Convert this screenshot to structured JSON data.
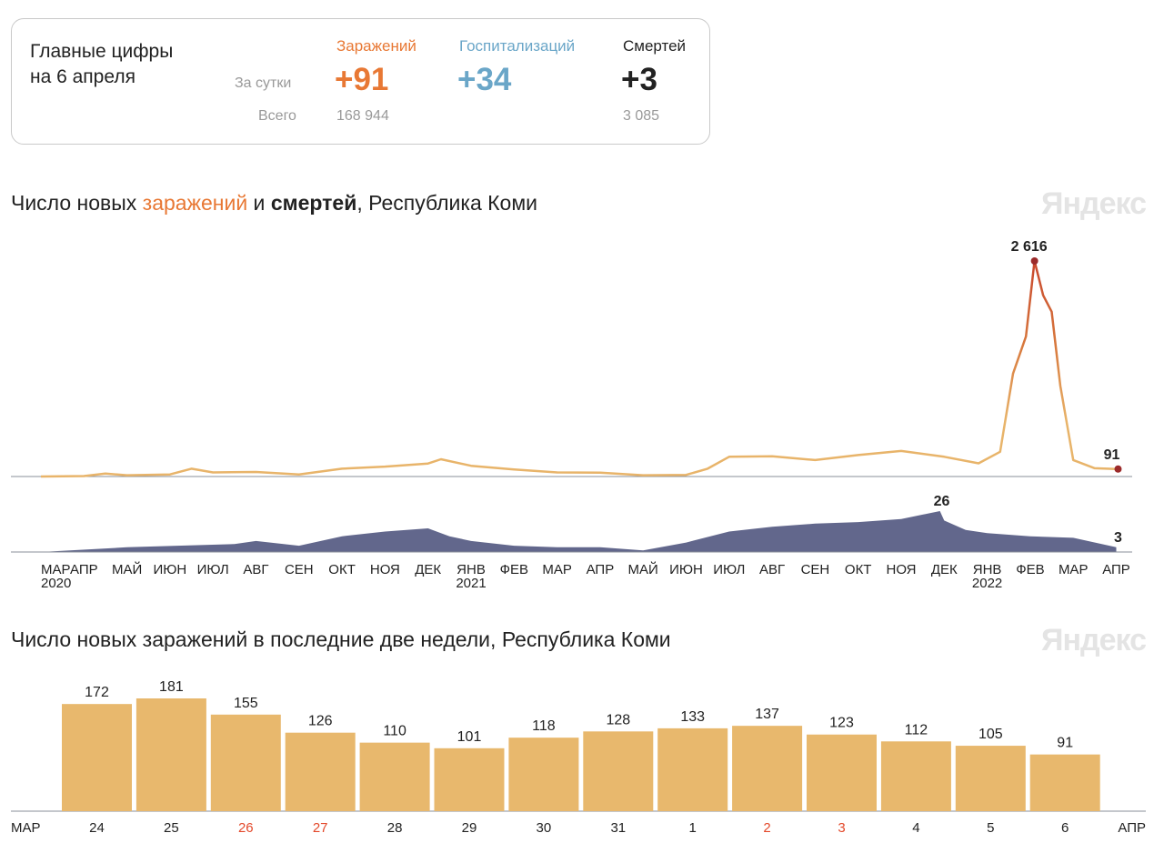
{
  "card": {
    "title_line1": "Главные цифры",
    "title_line2": "на 6 апреля",
    "row_daily": "За сутки",
    "row_total": "Всего",
    "columns": [
      {
        "label": "Заражений",
        "daily": "+91",
        "total": "168 944",
        "color": "#e87834"
      },
      {
        "label": "Госпитализаций",
        "daily": "+34",
        "total": "",
        "color": "#6aa6c8"
      },
      {
        "label": "Смертей",
        "daily": "+3",
        "total": "3 085",
        "color": "#222222"
      }
    ]
  },
  "watermark": "Яндекс",
  "chart1": {
    "title_prefix": "Число новых ",
    "title_cases": "заражений",
    "title_and": " и ",
    "title_deaths": "смертей",
    "title_suffix": ", Республика Коми"
  },
  "chart2": {
    "title": "Число новых заражений в последние две недели, Республика Коми"
  },
  "chart_data": [
    {
      "type": "line",
      "name": "cases_and_deaths",
      "x_ticks": [
        {
          "label": "МАР",
          "year": "2020"
        },
        {
          "label": "АПР"
        },
        {
          "label": "МАЙ"
        },
        {
          "label": "ИЮН"
        },
        {
          "label": "ИЮЛ"
        },
        {
          "label": "АВГ"
        },
        {
          "label": "СЕН"
        },
        {
          "label": "ОКТ"
        },
        {
          "label": "НОЯ"
        },
        {
          "label": "ДЕК"
        },
        {
          "label": "ЯНВ",
          "year": "2021"
        },
        {
          "label": "ФЕВ"
        },
        {
          "label": "МАР"
        },
        {
          "label": "АПР"
        },
        {
          "label": "МАЙ"
        },
        {
          "label": "ИЮН"
        },
        {
          "label": "ИЮЛ"
        },
        {
          "label": "АВГ"
        },
        {
          "label": "СЕН"
        },
        {
          "label": "ОКТ"
        },
        {
          "label": "НОЯ"
        },
        {
          "label": "ДЕК"
        },
        {
          "label": "ЯНВ",
          "year": "2022"
        },
        {
          "label": "ФЕВ"
        },
        {
          "label": "МАР"
        },
        {
          "label": "АПР"
        }
      ],
      "cases": {
        "points": [
          [
            0,
            0
          ],
          [
            1,
            5
          ],
          [
            1.5,
            35
          ],
          [
            2,
            15
          ],
          [
            3,
            25
          ],
          [
            3.5,
            95
          ],
          [
            4,
            50
          ],
          [
            5,
            55
          ],
          [
            6,
            25
          ],
          [
            7,
            95
          ],
          [
            8,
            120
          ],
          [
            9,
            158
          ],
          [
            9.3,
            210
          ],
          [
            10,
            130
          ],
          [
            11,
            85
          ],
          [
            12,
            50
          ],
          [
            13,
            48
          ],
          [
            14,
            15
          ],
          [
            15,
            20
          ],
          [
            15.5,
            95
          ],
          [
            16,
            240
          ],
          [
            17,
            245
          ],
          [
            18,
            200
          ],
          [
            19,
            260
          ],
          [
            20,
            310
          ],
          [
            21,
            240
          ],
          [
            21.8,
            160
          ],
          [
            22.3,
            300
          ],
          [
            22.6,
            1250
          ],
          [
            22.9,
            1700
          ],
          [
            23.1,
            2616
          ],
          [
            23.3,
            2200
          ],
          [
            23.5,
            2000
          ],
          [
            23.7,
            1100
          ],
          [
            24,
            200
          ],
          [
            24.5,
            100
          ],
          [
            25,
            91
          ]
        ],
        "peak": {
          "label": "2 616",
          "value": 2616
        },
        "last": {
          "label": "91",
          "value": 91
        },
        "colors": {
          "low": "#e8b46a",
          "high": "#c8462c",
          "dot": "#9b2a2a"
        }
      },
      "deaths": {
        "points": [
          [
            0,
            0
          ],
          [
            2,
            3
          ],
          [
            4.5,
            5
          ],
          [
            5,
            7
          ],
          [
            6,
            4
          ],
          [
            7,
            10
          ],
          [
            8,
            13
          ],
          [
            9,
            15
          ],
          [
            9.5,
            10
          ],
          [
            10,
            7
          ],
          [
            11,
            4
          ],
          [
            12,
            3
          ],
          [
            13,
            3
          ],
          [
            14,
            1
          ],
          [
            15,
            6
          ],
          [
            16,
            13
          ],
          [
            17,
            16
          ],
          [
            18,
            18
          ],
          [
            19,
            19
          ],
          [
            20,
            21
          ],
          [
            20.9,
            26
          ],
          [
            21,
            20
          ],
          [
            21.5,
            14
          ],
          [
            22,
            12
          ],
          [
            23,
            10
          ],
          [
            24,
            9
          ],
          [
            25,
            3
          ]
        ],
        "peak": {
          "label": "26",
          "value": 26
        },
        "last": {
          "label": "3",
          "value": 3
        },
        "color": "#5a5f86"
      }
    },
    {
      "type": "bar",
      "name": "last_two_weeks",
      "start_month": "МАР",
      "end_month": "АПР",
      "categories": [
        "24",
        "25",
        "26",
        "27",
        "28",
        "29",
        "30",
        "31",
        "1",
        "2",
        "3",
        "4",
        "5",
        "6"
      ],
      "values": [
        172,
        181,
        155,
        126,
        110,
        101,
        118,
        128,
        133,
        137,
        123,
        112,
        105,
        91
      ],
      "weekend": [
        false,
        false,
        true,
        true,
        false,
        false,
        false,
        false,
        false,
        true,
        true,
        false,
        false,
        false
      ],
      "ylim": [
        0,
        181
      ],
      "bar_color": "#e8b86d",
      "weekend_color": "#e3492b"
    }
  ]
}
